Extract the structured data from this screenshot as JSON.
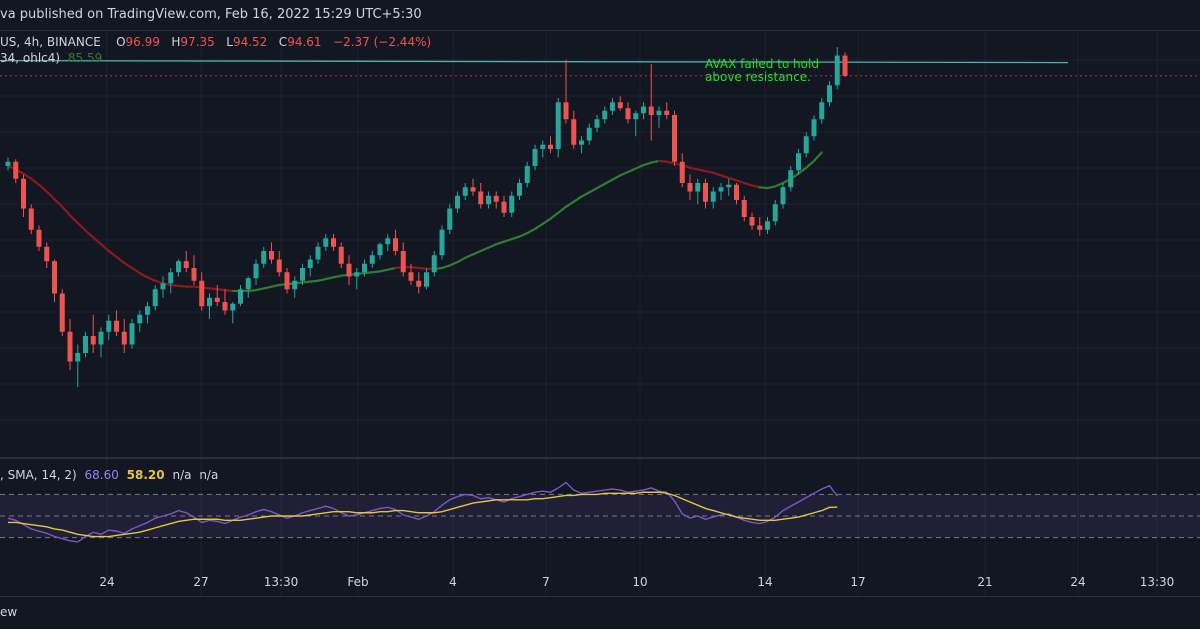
{
  "header": {
    "publisher": "va published on TradingView.com, Feb 16, 2022 15:29 UTC+5:30"
  },
  "legend": {
    "symbol": "US, 4h, BINANCE",
    "o_label": "O",
    "o_value": "96.99",
    "h_label": "H",
    "h_value": "97.35",
    "l_label": "L",
    "l_value": "94.52",
    "c_label": "C",
    "c_value": "94.61",
    "change": "−2.37 (−2.44%)",
    "ma_label": "34, ohlc4)",
    "ma_value": "85.59",
    "rsi_label": ", SMA, 14, 2)",
    "rsi_value": "68.60",
    "rsi_sma_value": "58.20",
    "na1": "n/a",
    "na2": "n/a"
  },
  "annotation": {
    "line1": "AVAX failed to hold",
    "line2": "above resistance."
  },
  "footer": {
    "label": "ew"
  },
  "colors": {
    "background": "#131722",
    "up": "#26a69a",
    "down": "#ef5350",
    "ma_up": "#2e7d32",
    "ma_down": "#8b1a1a",
    "rsi": "#7e57c2",
    "rsi_sma": "#e5c440",
    "resistance": "#4db6ac",
    "annotation": "#22e32e"
  },
  "chart_data": [
    {
      "type": "candlestick",
      "title": "",
      "xlabel": "",
      "ylabel": "",
      "x_ticks": [
        "24",
        "27",
        "13:30",
        "Feb",
        "4",
        "7",
        "10",
        "14",
        "17",
        "21",
        "24",
        "13:30"
      ],
      "ylim": [
        50,
        100
      ],
      "resistance_level": 96.4,
      "candles": [
        [
          84,
          85,
          83.5,
          84.5
        ],
        [
          84.5,
          84.8,
          82,
          82.5
        ],
        [
          82.5,
          83,
          78,
          79
        ],
        [
          79,
          79.5,
          76,
          76.5
        ],
        [
          76.5,
          77,
          74,
          74.5
        ],
        [
          74.5,
          75,
          72,
          72.8
        ],
        [
          72.8,
          73,
          68,
          69
        ],
        [
          69,
          69.5,
          64,
          64.5
        ],
        [
          64.5,
          66,
          60,
          61
        ],
        [
          61,
          63,
          58,
          62
        ],
        [
          62,
          64.5,
          61.5,
          64
        ],
        [
          64,
          66.5,
          62,
          63
        ],
        [
          63,
          65,
          61.5,
          64.5
        ],
        [
          64.5,
          66.5,
          63.5,
          65.8
        ],
        [
          65.8,
          67,
          64,
          64.5
        ],
        [
          64.5,
          66,
          62,
          63
        ],
        [
          63,
          66,
          62.5,
          65.5
        ],
        [
          65.5,
          67,
          64.5,
          66.5
        ],
        [
          66.5,
          68,
          65.5,
          67.5
        ],
        [
          67.5,
          70,
          67,
          69.5
        ],
        [
          69.5,
          71,
          68.5,
          70.2
        ],
        [
          70.2,
          72,
          69,
          71.5
        ],
        [
          71.5,
          73,
          71,
          72.8
        ],
        [
          72.8,
          74,
          71.5,
          72
        ],
        [
          72,
          73.5,
          70,
          70.5
        ],
        [
          70.5,
          71.5,
          67,
          67.5
        ],
        [
          67.5,
          69,
          66,
          68.5
        ],
        [
          68.5,
          70,
          67.5,
          68
        ],
        [
          68,
          69.5,
          66.5,
          67
        ],
        [
          67,
          68,
          65.5,
          67.8
        ],
        [
          67.8,
          70,
          67.5,
          69.5
        ],
        [
          69.5,
          71,
          68.5,
          70.8
        ],
        [
          70.8,
          73,
          70,
          72.5
        ],
        [
          72.5,
          74.5,
          72,
          74
        ],
        [
          74,
          75,
          72.5,
          73
        ],
        [
          73,
          74,
          71,
          71.5
        ],
        [
          71.5,
          72,
          69,
          69.5
        ],
        [
          69.5,
          71,
          68.5,
          70.5
        ],
        [
          70.5,
          72.5,
          70,
          72
        ],
        [
          72,
          73.5,
          71,
          73
        ],
        [
          73,
          75,
          72.5,
          74.5
        ],
        [
          74.5,
          76,
          74,
          75.5
        ],
        [
          75.5,
          76,
          74,
          74.5
        ],
        [
          74.5,
          75,
          72,
          72.5
        ],
        [
          72.5,
          73.5,
          70,
          71
        ],
        [
          71,
          72,
          69.5,
          71.5
        ],
        [
          71.5,
          73,
          71,
          72.5
        ],
        [
          72.5,
          74,
          72,
          73.5
        ],
        [
          73.5,
          75,
          73,
          74.8
        ],
        [
          74.8,
          76,
          74,
          75.5
        ],
        [
          75.5,
          76.5,
          73.5,
          74
        ],
        [
          74,
          75,
          71,
          71.5
        ],
        [
          71.5,
          72.5,
          70,
          70.5
        ],
        [
          70.5,
          71.5,
          69,
          69.8
        ],
        [
          69.8,
          72,
          69.5,
          71.5
        ],
        [
          71.5,
          74,
          71,
          73.5
        ],
        [
          73.5,
          77,
          73,
          76.5
        ],
        [
          76.5,
          79.5,
          76,
          79
        ],
        [
          79,
          81,
          78.5,
          80.5
        ],
        [
          80.5,
          82,
          80,
          81.5
        ],
        [
          81.5,
          82.5,
          80.5,
          81
        ],
        [
          81,
          82,
          79,
          79.5
        ],
        [
          79.5,
          81,
          79,
          80.5
        ],
        [
          80.5,
          81,
          79,
          79.8
        ],
        [
          79.8,
          80.5,
          78,
          78.5
        ],
        [
          78.5,
          81,
          78,
          80.5
        ],
        [
          80.5,
          82.5,
          80,
          82
        ],
        [
          82,
          84.5,
          81.5,
          84
        ],
        [
          84,
          86.5,
          83.5,
          86
        ],
        [
          86,
          87,
          85,
          86.5
        ],
        [
          86.5,
          87.5,
          85.5,
          86
        ],
        [
          86,
          92,
          85,
          91.5
        ],
        [
          91.5,
          96.5,
          89,
          89.5
        ],
        [
          89.5,
          90.5,
          86,
          86.5
        ],
        [
          86.5,
          87.5,
          85.5,
          87
        ],
        [
          87,
          89,
          86.5,
          88.5
        ],
        [
          88.5,
          90,
          88,
          89.5
        ],
        [
          89.5,
          91,
          89,
          90.5
        ],
        [
          90.5,
          92,
          90,
          91.5
        ],
        [
          91.5,
          92.2,
          90.5,
          90.8
        ],
        [
          90.8,
          91.5,
          89,
          89.5
        ],
        [
          89.5,
          90.5,
          87.5,
          90.2
        ],
        [
          90.2,
          91.5,
          89.5,
          91
        ],
        [
          91,
          96,
          87,
          90
        ],
        [
          90,
          91,
          88.5,
          90.5
        ],
        [
          90.5,
          91.5,
          89.5,
          90
        ],
        [
          90,
          90.5,
          84,
          84.5
        ],
        [
          84.5,
          85.5,
          81.5,
          82
        ],
        [
          82,
          83,
          80,
          81
        ],
        [
          81,
          82.5,
          79.5,
          82
        ],
        [
          82,
          82.5,
          79,
          79.8
        ],
        [
          79.8,
          81.5,
          79,
          81
        ],
        [
          81,
          82,
          80,
          81.5
        ],
        [
          81.5,
          82.5,
          80.5,
          81.8
        ],
        [
          81.8,
          82,
          79.5,
          80
        ],
        [
          80,
          80.5,
          77.5,
          78
        ],
        [
          78,
          78.5,
          76.5,
          77
        ],
        [
          77,
          78,
          75.8,
          76.5
        ],
        [
          76.5,
          78,
          76,
          77.5
        ],
        [
          77.5,
          80,
          77,
          79.5
        ],
        [
          79.5,
          82,
          79,
          81.5
        ],
        [
          81.5,
          84,
          81,
          83.5
        ],
        [
          83.5,
          86,
          83,
          85.5
        ],
        [
          85.5,
          88,
          85,
          87.5
        ],
        [
          87.5,
          90,
          87,
          89.5
        ],
        [
          89.5,
          92,
          89,
          91.5
        ],
        [
          91.5,
          94,
          91,
          93.5
        ],
        [
          93.5,
          98,
          93,
          97
        ],
        [
          96.99,
          97.35,
          94.52,
          94.61
        ]
      ],
      "ma": [
        84,
        83.6,
        83.1,
        82.5,
        81.8,
        81,
        80.1,
        79.2,
        78.2,
        77.3,
        76.4,
        75.6,
        74.8,
        74,
        73.3,
        72.6,
        72,
        71.4,
        70.9,
        70.5,
        70.2,
        70,
        69.9,
        69.8,
        69.8,
        69.7,
        69.6,
        69.5,
        69.4,
        69.3,
        69.3,
        69.3,
        69.4,
        69.6,
        69.8,
        70,
        70.1,
        70.2,
        70.3,
        70.4,
        70.5,
        70.7,
        70.9,
        71.1,
        71.2,
        71.3,
        71.4,
        71.5,
        71.6,
        71.8,
        72,
        72.1,
        72.1,
        72,
        71.9,
        71.9,
        72,
        72.3,
        72.7,
        73.2,
        73.6,
        74,
        74.4,
        74.8,
        75.1,
        75.4,
        75.7,
        76.1,
        76.6,
        77.2,
        77.8,
        78.5,
        79.2,
        79.8,
        80.4,
        80.9,
        81.4,
        81.9,
        82.4,
        82.9,
        83.3,
        83.7,
        84.1,
        84.4,
        84.6,
        84.5,
        84.3,
        84.1,
        83.8,
        83.6,
        83.4,
        83.2,
        82.9,
        82.6,
        82.3,
        82,
        81.7,
        81.5,
        81.4,
        81.6,
        82,
        82.5,
        83.1,
        83.8,
        84.6,
        85.59
      ],
      "ma_trend": [
        "down",
        "down",
        "down",
        "down",
        "down",
        "down",
        "down",
        "down",
        "down",
        "down",
        "down",
        "down",
        "down",
        "down",
        "down",
        "down",
        "down",
        "down",
        "down",
        "down",
        "down",
        "down",
        "down",
        "down",
        "down",
        "down",
        "down",
        "down",
        "down",
        "down",
        "up",
        "up",
        "up",
        "up",
        "up",
        "up",
        "up",
        "up",
        "up",
        "up",
        "up",
        "up",
        "up",
        "up",
        "up",
        "up",
        "up",
        "up",
        "up",
        "up",
        "up",
        "down",
        "down",
        "down",
        "down",
        "down",
        "up",
        "up",
        "up",
        "up",
        "up",
        "up",
        "up",
        "up",
        "up",
        "up",
        "up",
        "up",
        "up",
        "up",
        "up",
        "up",
        "up",
        "up",
        "up",
        "up",
        "up",
        "up",
        "up",
        "up",
        "up",
        "up",
        "up",
        "up",
        "up",
        "down",
        "down",
        "down",
        "down",
        "down",
        "down",
        "down",
        "down",
        "down",
        "down",
        "down",
        "down",
        "down",
        "up",
        "up",
        "up",
        "up",
        "up",
        "up",
        "up",
        "up"
      ]
    },
    {
      "type": "line",
      "title": "",
      "ylim": [
        0,
        100
      ],
      "bands": [
        70,
        50,
        30
      ],
      "series": [
        {
          "values": [
            48,
            46,
            42,
            38,
            36,
            34,
            31,
            29,
            27,
            26,
            31,
            35,
            33,
            37,
            36,
            34,
            38,
            41,
            44,
            48,
            50,
            52,
            55,
            53,
            49,
            44,
            46,
            45,
            43,
            46,
            49,
            51,
            54,
            56,
            54,
            51,
            48,
            50,
            53,
            55,
            57,
            59,
            57,
            53,
            50,
            51,
            53,
            55,
            57,
            58,
            56,
            51,
            49,
            47,
            50,
            54,
            60,
            65,
            68,
            70,
            69,
            66,
            67,
            65,
            63,
            66,
            68,
            70,
            72,
            73,
            72,
            76,
            81,
            74,
            71,
            72,
            73,
            74,
            75,
            74,
            72,
            73,
            74,
            76,
            73,
            72,
            64,
            52,
            48,
            50,
            47,
            49,
            51,
            52,
            49,
            46,
            44,
            43,
            45,
            49,
            55,
            59,
            63,
            67,
            71,
            75,
            78,
            68.6
          ]
        },
        {
          "values": [
            44,
            44,
            43,
            42,
            41,
            40,
            38,
            37,
            35,
            33,
            32,
            31,
            31,
            31,
            32,
            33,
            34,
            35,
            37,
            39,
            41,
            43,
            45,
            46,
            47,
            47,
            47,
            47,
            46,
            46,
            46,
            47,
            48,
            49,
            50,
            50,
            50,
            50,
            50,
            51,
            52,
            53,
            54,
            54,
            54,
            53,
            53,
            53,
            54,
            54,
            55,
            55,
            54,
            53,
            53,
            53,
            54,
            56,
            58,
            60,
            62,
            63,
            64,
            65,
            65,
            65,
            65,
            65,
            66,
            66,
            67,
            68,
            69,
            69,
            70,
            70,
            70,
            71,
            71,
            71,
            71,
            71,
            72,
            72,
            72,
            71,
            69,
            66,
            63,
            60,
            57,
            55,
            53,
            51,
            49,
            48,
            47,
            46,
            46,
            46,
            47,
            48,
            49,
            51,
            53,
            55,
            58,
            58.2
          ]
        }
      ]
    }
  ]
}
